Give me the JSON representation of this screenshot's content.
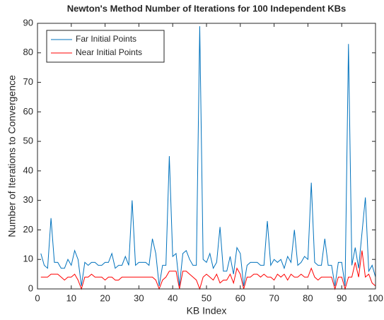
{
  "chart_data": {
    "type": "line",
    "title": "Newton's Method Number of Iterations for 100 Independent KBs",
    "x_label": "KB Index",
    "y_label": "Number of Iterations to Convergence",
    "x": [
      1,
      2,
      3,
      4,
      5,
      6,
      7,
      8,
      9,
      10,
      11,
      12,
      13,
      14,
      15,
      16,
      17,
      18,
      19,
      20,
      21,
      22,
      23,
      24,
      25,
      26,
      27,
      28,
      29,
      30,
      31,
      32,
      33,
      34,
      35,
      36,
      37,
      38,
      39,
      40,
      41,
      42,
      43,
      44,
      45,
      46,
      47,
      48,
      49,
      50,
      51,
      52,
      53,
      54,
      55,
      56,
      57,
      58,
      59,
      60,
      61,
      62,
      63,
      64,
      65,
      66,
      67,
      68,
      69,
      70,
      71,
      72,
      73,
      74,
      75,
      76,
      77,
      78,
      79,
      80,
      81,
      82,
      83,
      84,
      85,
      86,
      87,
      88,
      89,
      90,
      91,
      92,
      93,
      94,
      95,
      96,
      97,
      98,
      99,
      100
    ],
    "series": [
      {
        "name": "Far Initial Points",
        "color": "#0072bd",
        "values": [
          12,
          8,
          7,
          24,
          9,
          9,
          7,
          7,
          10,
          8,
          13,
          10,
          1,
          9,
          8,
          9,
          9,
          8,
          8,
          9,
          9,
          12,
          7,
          8,
          8,
          11,
          8,
          30,
          8,
          9,
          9,
          9,
          8,
          17,
          12,
          1,
          8,
          8,
          45,
          11,
          12,
          1,
          12,
          13,
          10,
          8,
          8,
          89,
          10,
          9,
          12,
          7,
          9,
          21,
          6,
          6,
          11,
          5,
          14,
          12,
          1,
          8,
          9,
          9,
          9,
          8,
          8,
          23,
          8,
          10,
          9,
          10,
          7,
          11,
          9,
          20,
          8,
          9,
          11,
          10,
          36,
          9,
          8,
          8,
          17,
          8,
          8,
          1,
          9,
          9,
          1,
          83,
          8,
          14,
          7,
          19,
          31,
          6,
          8,
          4
        ]
      },
      {
        "name": "Near Initial Points",
        "color": "#ff0000",
        "values": [
          4,
          4,
          4,
          5,
          5,
          5,
          4,
          3,
          4,
          4,
          5,
          3,
          0,
          4,
          4,
          5,
          4,
          4,
          4,
          3,
          4,
          4,
          3,
          3,
          4,
          4,
          4,
          4,
          4,
          4,
          4,
          4,
          4,
          4,
          3,
          0,
          3,
          4,
          6,
          6,
          6,
          0,
          6,
          6,
          5,
          4,
          3,
          0,
          4,
          5,
          4,
          3,
          5,
          2,
          3,
          3,
          5,
          2,
          7,
          5,
          0,
          4,
          4,
          5,
          5,
          4,
          5,
          4,
          4,
          3,
          5,
          4,
          5,
          3,
          5,
          4,
          4,
          5,
          4,
          4,
          7,
          4,
          3,
          4,
          4,
          4,
          4,
          0,
          4,
          4,
          0,
          4,
          4,
          9,
          4,
          13,
          4,
          5,
          2,
          1
        ]
      }
    ],
    "xlim": [
      0,
      100
    ],
    "ylim": [
      0,
      90
    ],
    "xticks": [
      0,
      10,
      20,
      30,
      40,
      50,
      60,
      70,
      80,
      90,
      100
    ],
    "yticks": [
      0,
      10,
      20,
      30,
      40,
      50,
      60,
      70,
      80,
      90
    ],
    "grid": false,
    "legend": "upper left"
  }
}
